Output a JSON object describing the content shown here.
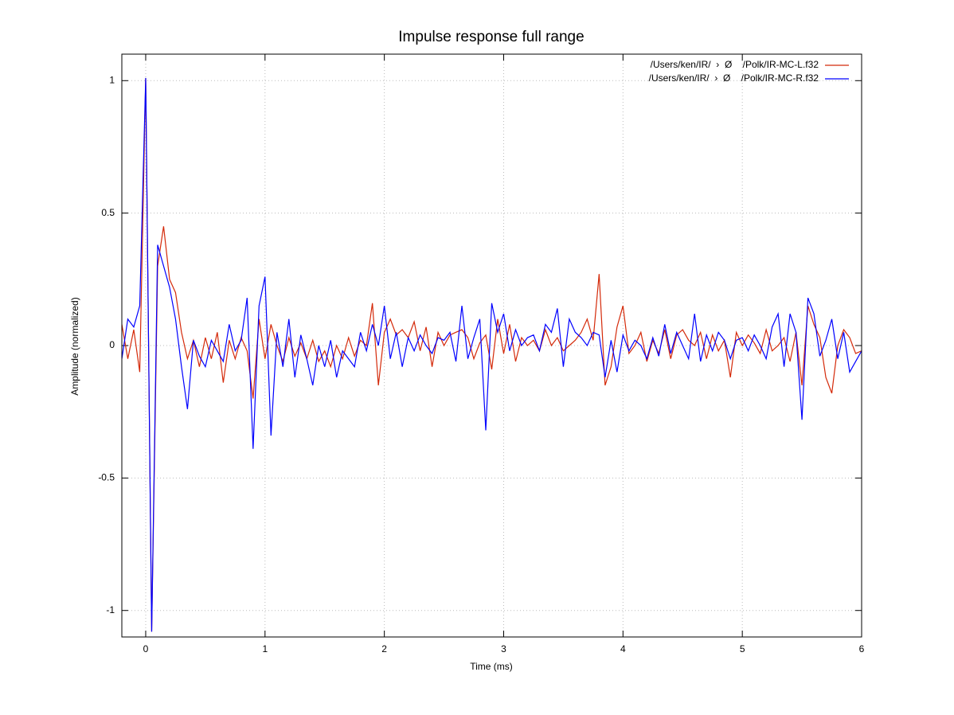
{
  "chart_data": {
    "type": "line",
    "title": "Impulse response full range",
    "xlabel": "Time (ms)",
    "ylabel": "Amplitude (normalized)",
    "xlim": [
      -0.2,
      6
    ],
    "ylim": [
      -1.1,
      1.1
    ],
    "xticks": [
      0,
      1,
      2,
      3,
      4,
      5,
      6
    ],
    "yticks": [
      -1,
      -0.5,
      0,
      0.5,
      1
    ],
    "grid": true,
    "legend": "upper right",
    "x": [
      -0.2,
      -0.15,
      -0.1,
      -0.05,
      0,
      0.05,
      0.1,
      0.15,
      0.2,
      0.25,
      0.3,
      0.35,
      0.4,
      0.45,
      0.5,
      0.55,
      0.6,
      0.65,
      0.7,
      0.75,
      0.8,
      0.85,
      0.9,
      0.95,
      1,
      1.05,
      1.1,
      1.15,
      1.2,
      1.25,
      1.3,
      1.35,
      1.4,
      1.45,
      1.5,
      1.55,
      1.6,
      1.65,
      1.7,
      1.75,
      1.8,
      1.85,
      1.9,
      1.95,
      2,
      2.05,
      2.1,
      2.15,
      2.2,
      2.25,
      2.3,
      2.35,
      2.4,
      2.45,
      2.5,
      2.55,
      2.6,
      2.65,
      2.7,
      2.75,
      2.8,
      2.85,
      2.9,
      2.95,
      3,
      3.05,
      3.1,
      3.15,
      3.2,
      3.25,
      3.3,
      3.35,
      3.4,
      3.45,
      3.5,
      3.55,
      3.6,
      3.65,
      3.7,
      3.75,
      3.8,
      3.85,
      3.9,
      3.95,
      4,
      4.05,
      4.1,
      4.15,
      4.2,
      4.25,
      4.3,
      4.35,
      4.4,
      4.45,
      4.5,
      4.55,
      4.6,
      4.65,
      4.7,
      4.75,
      4.8,
      4.85,
      4.9,
      4.95,
      5,
      5.05,
      5.1,
      5.15,
      5.2,
      5.25,
      5.3,
      5.35,
      5.4,
      5.45,
      5.5,
      5.55,
      5.6,
      5.65,
      5.7,
      5.75,
      5.8,
      5.85,
      5.9,
      5.95,
      6
    ],
    "series": [
      {
        "name": "/Users/ken/IR/  ›  Ø    /Polk/IR-MC-L.f32",
        "color": "#d42a0a",
        "values": [
          0.08,
          -0.05,
          0.06,
          -0.1,
          1.01,
          -1.08,
          0.3,
          0.45,
          0.25,
          0.2,
          0.05,
          -0.05,
          0.02,
          -0.08,
          0.03,
          -0.05,
          0.05,
          -0.14,
          0.02,
          -0.05,
          0.03,
          -0.02,
          -0.2,
          0.1,
          -0.05,
          0.08,
          0,
          -0.06,
          0.03,
          -0.04,
          0.01,
          -0.05,
          0.02,
          -0.06,
          -0.02,
          -0.08,
          0,
          -0.05,
          0.03,
          -0.04,
          0.02,
          0,
          0.16,
          -0.15,
          0.05,
          0.1,
          0.04,
          0.06,
          0.03,
          0.09,
          -0.02,
          0.07,
          -0.08,
          0.05,
          0,
          0.04,
          0.05,
          0.06,
          0.03,
          -0.05,
          0.01,
          0.04,
          -0.09,
          0.1,
          -0.03,
          0.08,
          -0.06,
          0.03,
          0,
          0.02,
          -0.02,
          0.06,
          0,
          0.03,
          -0.02,
          0,
          0.02,
          0.05,
          0.1,
          0.02,
          0.27,
          -0.15,
          -0.08,
          0.07,
          0.15,
          -0.03,
          0,
          0.05,
          -0.06,
          0.02,
          -0.03,
          0.06,
          -0.05,
          0.04,
          0.06,
          0.02,
          0,
          0.05,
          -0.05,
          0.04,
          -0.02,
          0.02,
          -0.12,
          0.05,
          0,
          0.04,
          0.01,
          -0.03,
          0.06,
          -0.02,
          0,
          0.03,
          -0.06,
          0.05,
          -0.15,
          0.15,
          0.08,
          0.03,
          -0.12,
          -0.18,
          0,
          0.06,
          0.03,
          -0.03,
          -0.02
        ]
      },
      {
        "name": "/Users/ken/IR/  ›  Ø    /Polk/IR-MC-R.f32",
        "color": "#0000ff",
        "values": [
          -0.05,
          0.1,
          0.07,
          0.15,
          1.01,
          -1.08,
          0.38,
          0.3,
          0.22,
          0.1,
          -0.08,
          -0.24,
          0.02,
          -0.04,
          -0.08,
          0.02,
          -0.02,
          -0.06,
          0.08,
          -0.02,
          0.02,
          0.18,
          -0.39,
          0.15,
          0.26,
          -0.34,
          0.05,
          -0.08,
          0.1,
          -0.12,
          0.04,
          -0.05,
          -0.15,
          0,
          -0.08,
          0.02,
          -0.12,
          -0.02,
          -0.05,
          -0.08,
          0.05,
          -0.02,
          0.08,
          0,
          0.15,
          -0.05,
          0.05,
          -0.08,
          0.03,
          -0.02,
          0.04,
          0,
          -0.03,
          0.03,
          0.02,
          0.05,
          -0.06,
          0.15,
          -0.05,
          0.03,
          0.1,
          -0.32,
          0.16,
          0.05,
          0.12,
          -0.02,
          0.06,
          0,
          0.03,
          0.04,
          -0.02,
          0.08,
          0.05,
          0.14,
          -0.08,
          0.1,
          0.05,
          0.03,
          0,
          0.05,
          0.04,
          -0.12,
          0.02,
          -0.1,
          0.04,
          -0.02,
          0.02,
          0,
          -0.05,
          0.03,
          -0.04,
          0.08,
          -0.03,
          0.05,
          0,
          -0.05,
          0.12,
          -0.06,
          0.04,
          -0.02,
          0.05,
          0.02,
          -0.05,
          0.02,
          0.03,
          -0.02,
          0.04,
          0,
          -0.05,
          0.07,
          0.12,
          -0.08,
          0.12,
          0.05,
          -0.28,
          0.18,
          0.12,
          -0.04,
          0.02,
          0.1,
          -0.05,
          0.05,
          -0.1,
          -0.06,
          -0.02
        ]
      }
    ]
  }
}
